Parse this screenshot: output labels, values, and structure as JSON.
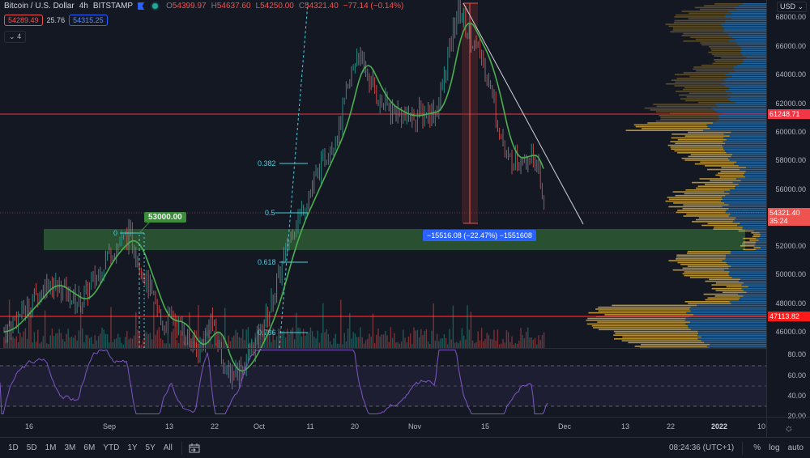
{
  "header": {
    "symbol_title": "Bitcoin / U.S. Dollar",
    "interval": "4h",
    "exchange": "BITSTAMP",
    "ohlc": {
      "o_label": "O",
      "o_value": "54399.97",
      "h_label": "H",
      "h_value": "54637.60",
      "l_label": "L",
      "l_value": "54250.00",
      "c_label": "C",
      "c_value": "54321.40",
      "change": "−77.14 (−0.14%)"
    },
    "bid": "54289.49",
    "spread": "25.76",
    "ask": "54315.25",
    "indicators_collapsed": "4"
  },
  "price_axis": {
    "currency": "USD",
    "ticks": [
      "68000.00",
      "66000.00",
      "64000.00",
      "62000.00",
      "60000.00",
      "58000.00",
      "56000.00",
      "54000.00",
      "52000.00",
      "50000.00",
      "48000.00",
      "46000.00"
    ],
    "level_upper": "61248.71",
    "current_price": "54321.40",
    "countdown": "35:24",
    "level_lower": "47113.82"
  },
  "rsi_axis": {
    "ticks": [
      "80.00",
      "60.00",
      "40.00",
      "20.00"
    ]
  },
  "time_axis": {
    "ticks": [
      "16",
      "Sep",
      "13",
      "22",
      "Oct",
      "11",
      "20",
      "Nov",
      "15",
      "Dec",
      "13",
      "22",
      "2022",
      "10"
    ]
  },
  "annotations": {
    "price_note": "53000.00",
    "measure": "−15516.08 (−22.47%) −1551608",
    "fib_levels": [
      "0",
      "0.382",
      "0.5",
      "0.618",
      "0.786"
    ]
  },
  "bottom_bar": {
    "ranges": [
      "1D",
      "5D",
      "1M",
      "3M",
      "6M",
      "YTD",
      "1Y",
      "5Y",
      "All"
    ],
    "clock": "08:24:36 (UTC+1)",
    "percent": "%",
    "log": "log",
    "auto": "auto"
  },
  "colors": {
    "background": "#131722",
    "up": "#26a69a",
    "down": "#ef5350",
    "ma": "#4caf50",
    "rsi": "#7e57c2",
    "fib": "#4dd0e1",
    "level": "#f23645",
    "zone": "#2e5a35",
    "vp_up": "#e0b13a",
    "vp_down": "#2a7fc6"
  },
  "chart_data": {
    "type": "candlestick",
    "title": "Bitcoin / U.S. Dollar, 4h, BITSTAMP",
    "ylim": [
      45000,
      69500
    ],
    "x_ticks": [
      "16 Aug",
      "Sep",
      "13",
      "22",
      "Oct",
      "11",
      "20",
      "Nov",
      "15",
      "Dec",
      "13",
      "22",
      "2022",
      "10"
    ],
    "approx_close_path": [
      {
        "t": "Aug 16",
        "price": 46000
      },
      {
        "t": "Aug 23",
        "price": 49500
      },
      {
        "t": "Aug 30",
        "price": 48000
      },
      {
        "t": "Sep 6",
        "price": 52800
      },
      {
        "t": "Sep 7",
        "price": 46500
      },
      {
        "t": "Sep 13",
        "price": 45000
      },
      {
        "t": "Sep 20",
        "price": 43000
      },
      {
        "t": "Sep 27",
        "price": 43500
      },
      {
        "t": "Oct 1",
        "price": 47000
      },
      {
        "t": "Oct 6",
        "price": 53000
      },
      {
        "t": "Oct 10",
        "price": 55500
      },
      {
        "t": "Oct 15",
        "price": 60500
      },
      {
        "t": "Oct 20",
        "price": 65500
      },
      {
        "t": "Oct 25",
        "price": 62000
      },
      {
        "t": "Nov 1",
        "price": 61000
      },
      {
        "t": "Nov 9",
        "price": 68500
      },
      {
        "t": "Nov 12",
        "price": 64500
      },
      {
        "t": "Nov 16",
        "price": 60000
      },
      {
        "t": "Nov 22",
        "price": 56500
      },
      {
        "t": "Nov 26",
        "price": 58500
      },
      {
        "t": "Nov 28",
        "price": 54321.4
      }
    ],
    "horizontal_levels": [
      61248.71,
      47113.82
    ],
    "support_zone": [
      51800,
      53300
    ],
    "fibonacci": {
      "0": 53000,
      "0.382": 57700,
      "0.5": 54300,
      "0.618": 50900,
      "0.786": 46000
    },
    "measure_drop": {
      "value": -15516.08,
      "percent": -22.47
    },
    "rsi": {
      "ylim": [
        15,
        88
      ],
      "bands": [
        30,
        50,
        70
      ],
      "last": 36
    }
  }
}
